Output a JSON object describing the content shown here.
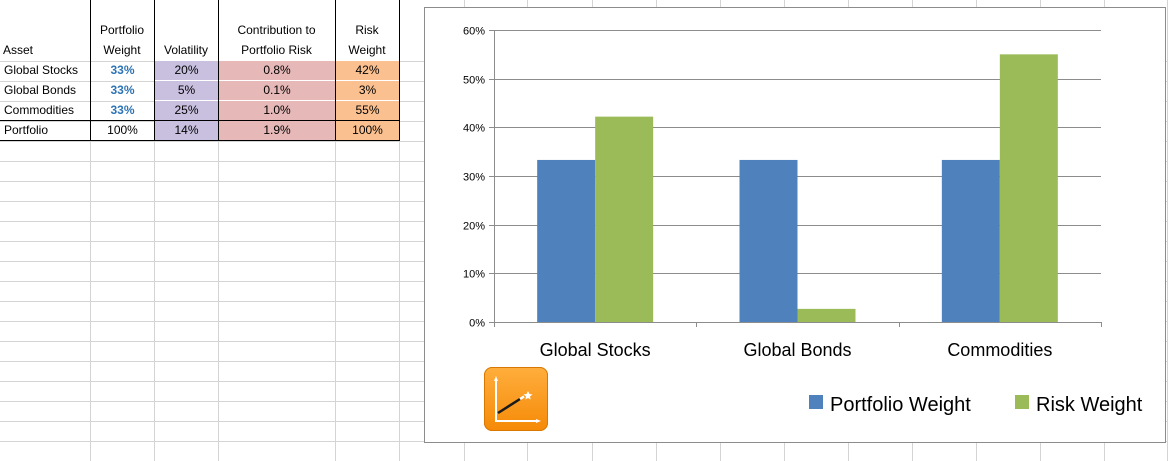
{
  "colors": {
    "volatility_fill": "#c9c0e0",
    "contribution_fill": "#e6b9b8",
    "risk_weight_fill": "#fac090",
    "series_portfolio_weight": "#4f81bd",
    "series_risk_weight": "#9bbb59",
    "weight_text": "#2e74b5"
  },
  "table": {
    "headers": {
      "asset": "Asset",
      "portfolio_weight_line1": "Portfolio",
      "portfolio_weight_line2": "Weight",
      "volatility": "Volatility",
      "contribution_line1": "Contribution to",
      "contribution_line2": "Portfolio Risk",
      "risk_weight_line1": "Risk",
      "risk_weight_line2": "Weight"
    },
    "rows": [
      {
        "asset": "Global Stocks",
        "weight": "33%",
        "volatility": "20%",
        "contribution": "0.8%",
        "risk_weight": "42%"
      },
      {
        "asset": "Global Bonds",
        "weight": "33%",
        "volatility": "5%",
        "contribution": "0.1%",
        "risk_weight": "3%"
      },
      {
        "asset": "Commodities",
        "weight": "33%",
        "volatility": "25%",
        "contribution": "1.0%",
        "risk_weight": "55%"
      }
    ],
    "total": {
      "asset": "Portfolio",
      "weight": "100%",
      "volatility": "14%",
      "contribution": "1.9%",
      "risk_weight": "100%"
    }
  },
  "chart_data": {
    "type": "bar",
    "categories": [
      "Global Stocks",
      "Global Bonds",
      "Commodities"
    ],
    "series": [
      {
        "name": "Portfolio Weight",
        "values": [
          33.3,
          33.3,
          33.3
        ],
        "color": "#4f81bd"
      },
      {
        "name": "Risk Weight",
        "values": [
          42.2,
          2.7,
          55.0
        ],
        "color": "#9bbb59"
      }
    ],
    "yticks": [
      "0%",
      "10%",
      "20%",
      "30%",
      "40%",
      "50%",
      "60%"
    ],
    "ylim": [
      0,
      60
    ],
    "grid": true,
    "legend": "bottom-right"
  }
}
